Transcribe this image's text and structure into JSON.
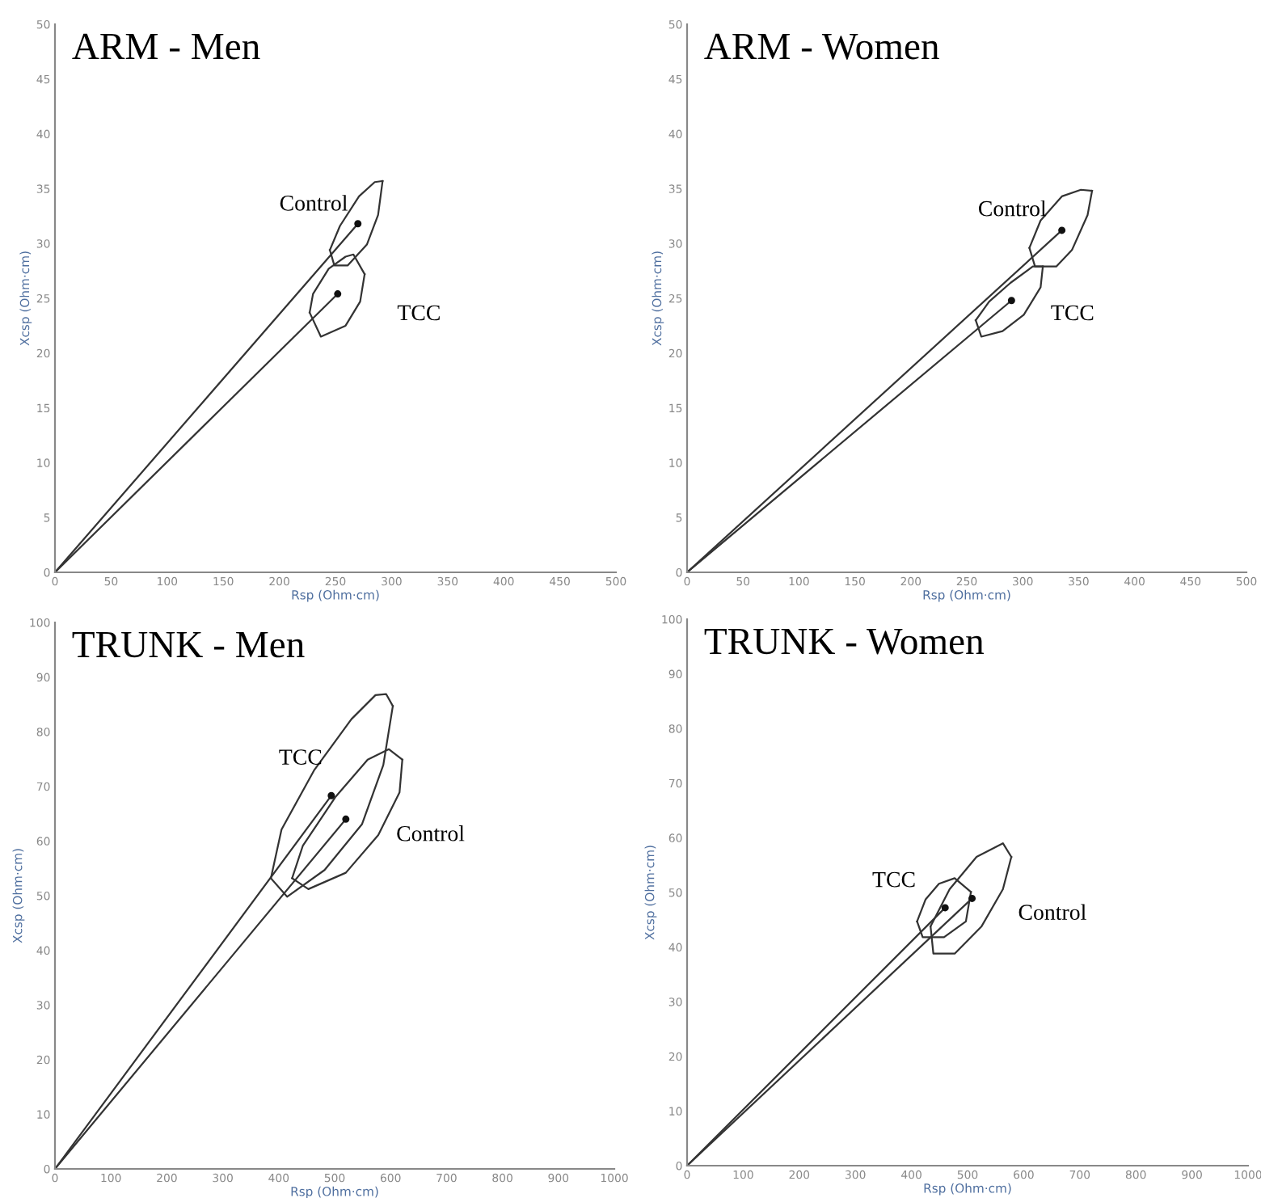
{
  "chart_data": [
    {
      "type": "line",
      "title": "ARM - Men",
      "xlabel": "Rsp (Ohm·cm)",
      "ylabel": "Xcsp (Ohm·cm)",
      "xlim": [
        0,
        500
      ],
      "ylim": [
        0,
        50
      ],
      "xticks": [
        0,
        50,
        100,
        150,
        200,
        250,
        300,
        350,
        400,
        450,
        500
      ],
      "yticks": [
        0,
        5,
        10,
        15,
        20,
        25,
        30,
        35,
        40,
        45,
        50
      ],
      "grid": false,
      "annotations": [
        "Control",
        "TCC"
      ],
      "series": [
        {
          "color": "#333333",
          "x": [
            245,
            254,
            271,
            285,
            292
          ],
          "values": [
            29.4,
            31.6,
            34.3,
            35.6,
            35.7
          ]
        },
        {
          "color": "#333333",
          "x": [
            245,
            249,
            261,
            278,
            288,
            292
          ],
          "values": [
            29.4,
            28.0,
            28.0,
            29.9,
            32.6,
            35.7
          ]
        },
        {
          "color": "#333333",
          "x": [
            227,
            230,
            244,
            259,
            266,
            276
          ],
          "values": [
            23.7,
            25.4,
            27.7,
            28.8,
            29.0,
            27.2
          ]
        },
        {
          "color": "#333333",
          "x": [
            227,
            237,
            259,
            272,
            276
          ],
          "values": [
            23.7,
            21.5,
            22.5,
            24.7,
            27.2
          ]
        },
        {
          "color": "#333333",
          "x": [
            0,
            270
          ],
          "values": [
            0,
            31.8
          ]
        },
        {
          "color": "#333333",
          "x": [
            0,
            252
          ],
          "values": [
            0,
            25.4
          ]
        },
        {
          "type": "scatter",
          "marker": "circle",
          "color": "#111111",
          "x": [
            270,
            252
          ],
          "values": [
            31.8,
            25.4
          ]
        }
      ]
    },
    {
      "type": "line",
      "title": "ARM - Women",
      "xlabel": "Rsp (Ohm·cm)",
      "ylabel": "Xcsp (Ohm·cm)",
      "xlim": [
        0,
        500
      ],
      "ylim": [
        0,
        50
      ],
      "xticks": [
        0,
        50,
        100,
        150,
        200,
        250,
        300,
        350,
        400,
        450,
        500
      ],
      "yticks": [
        0,
        5,
        10,
        15,
        20,
        25,
        30,
        35,
        40,
        45,
        50
      ],
      "grid": false,
      "annotations": [
        "Control",
        "TCC"
      ],
      "series": [
        {
          "color": "#333333",
          "x": [
            306,
            316,
            335,
            352,
            362
          ],
          "values": [
            29.6,
            32.1,
            34.3,
            34.9,
            34.8
          ]
        },
        {
          "color": "#333333",
          "x": [
            306,
            311,
            330,
            344,
            358,
            362
          ],
          "values": [
            29.6,
            27.9,
            27.9,
            29.4,
            32.6,
            34.8
          ]
        },
        {
          "color": "#333333",
          "x": [
            258,
            270,
            289,
            309,
            318
          ],
          "values": [
            23.0,
            24.7,
            26.4,
            27.9,
            27.9
          ]
        },
        {
          "color": "#333333",
          "x": [
            258,
            263,
            282,
            301,
            316,
            318
          ],
          "values": [
            23.0,
            21.5,
            22.0,
            23.5,
            26.0,
            27.9
          ]
        },
        {
          "color": "#333333",
          "x": [
            0,
            335
          ],
          "values": [
            0,
            31.2
          ]
        },
        {
          "color": "#333333",
          "x": [
            0,
            290
          ],
          "values": [
            0,
            24.8
          ]
        },
        {
          "type": "scatter",
          "marker": "circle",
          "color": "#111111",
          "x": [
            335,
            290
          ],
          "values": [
            31.2,
            24.8
          ]
        }
      ]
    },
    {
      "type": "line",
      "title": "TRUNK - Men",
      "xlabel": "Rsp (Ohm·cm)",
      "ylabel": "Xcsp (Ohm·cm)",
      "xlim": [
        0,
        1000
      ],
      "ylim": [
        0,
        100
      ],
      "xticks": [
        0,
        100,
        200,
        300,
        400,
        500,
        600,
        700,
        800,
        900,
        1000
      ],
      "yticks": [
        0,
        10,
        20,
        30,
        40,
        50,
        60,
        70,
        80,
        90,
        100
      ],
      "grid": false,
      "annotations": [
        "TCC",
        "Control"
      ],
      "series": [
        {
          "color": "#333333",
          "x": [
            386,
            405,
            463,
            530,
            573,
            592,
            604
          ],
          "values": [
            53.2,
            62.1,
            72.9,
            82.3,
            86.7,
            86.9,
            84.7
          ]
        },
        {
          "color": "#333333",
          "x": [
            386,
            415,
            482,
            549,
            587,
            604
          ],
          "values": [
            53.2,
            49.8,
            54.7,
            63.1,
            73.9,
            84.7
          ]
        },
        {
          "color": "#333333",
          "x": [
            424,
            443,
            501,
            559,
            597,
            621
          ],
          "values": [
            53.2,
            59.1,
            68.0,
            74.9,
            76.8,
            74.9
          ]
        },
        {
          "color": "#333333",
          "x": [
            424,
            453,
            520,
            578,
            616,
            621
          ],
          "values": [
            53.2,
            51.2,
            54.2,
            61.1,
            68.9,
            74.9
          ]
        },
        {
          "color": "#333333",
          "x": [
            0,
            494
          ],
          "values": [
            0,
            68.3
          ]
        },
        {
          "color": "#333333",
          "x": [
            0,
            520
          ],
          "values": [
            0,
            64.0
          ]
        },
        {
          "type": "scatter",
          "marker": "circle",
          "color": "#111111",
          "x": [
            494,
            520
          ],
          "values": [
            68.3,
            64.0
          ]
        }
      ]
    },
    {
      "type": "line",
      "title": "TRUNK - Women",
      "xlabel": "Rsp (Ohm·cm)",
      "ylabel": "Xcsp (Ohm·cm)",
      "xlim": [
        0,
        1000
      ],
      "ylim": [
        0,
        100
      ],
      "xticks": [
        0,
        100,
        200,
        300,
        400,
        500,
        600,
        700,
        800,
        900,
        1000
      ],
      "yticks": [
        0,
        10,
        20,
        30,
        40,
        50,
        60,
        70,
        80,
        90,
        100
      ],
      "grid": false,
      "annotations": [
        "TCC",
        "Control"
      ],
      "series": [
        {
          "color": "#333333",
          "x": [
            410,
            425,
            449,
            477,
            506
          ],
          "values": [
            44.7,
            48.7,
            51.6,
            52.6,
            50.1
          ]
        },
        {
          "color": "#333333",
          "x": [
            410,
            420,
            458,
            497,
            506
          ],
          "values": [
            44.7,
            41.8,
            41.8,
            44.7,
            50.1
          ]
        },
        {
          "color": "#333333",
          "x": [
            434,
            468,
            516,
            563,
            578
          ],
          "values": [
            43.8,
            50.6,
            56.5,
            59.0,
            56.5
          ]
        },
        {
          "color": "#333333",
          "x": [
            434,
            439,
            477,
            525,
            563,
            578
          ],
          "values": [
            43.8,
            38.8,
            38.8,
            43.8,
            50.6,
            56.5
          ]
        },
        {
          "color": "#333333",
          "x": [
            0,
            460
          ],
          "values": [
            0,
            47.2
          ]
        },
        {
          "color": "#333333",
          "x": [
            0,
            508
          ],
          "values": [
            0,
            48.9
          ]
        },
        {
          "type": "scatter",
          "marker": "circle",
          "color": "#111111",
          "x": [
            460,
            508
          ],
          "values": [
            47.2,
            48.9
          ]
        }
      ]
    }
  ]
}
